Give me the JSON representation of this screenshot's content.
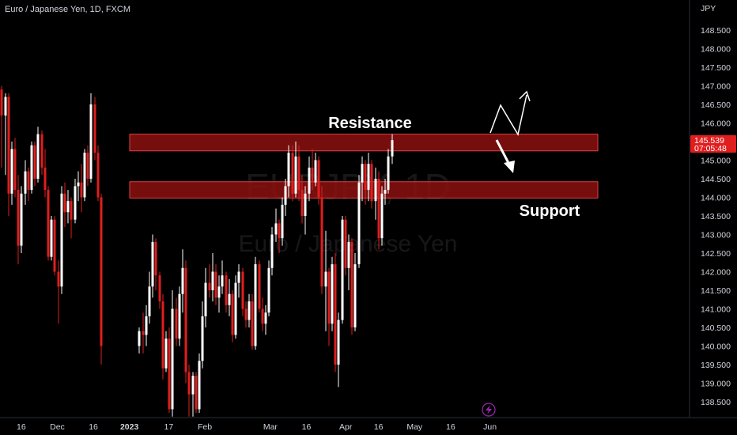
{
  "header": {
    "title": "Euro / Japanese Yen, 1D, FXCM"
  },
  "watermark": {
    "symbol": "EURJPY, 1D",
    "name": "Euro / Japanese Yen"
  },
  "price_axis": {
    "currency": "JPY"
  },
  "price_label": {
    "price": "145.539",
    "countdown": "07:05:48"
  },
  "annotations": {
    "resistance": "Resistance",
    "support": "Support"
  },
  "colors": {
    "up": "#ffffff",
    "down": "#e01e1e",
    "zone_fill": "#8b1111",
    "zone_stroke": "#e04040",
    "background": "#000000"
  },
  "icons": {
    "bottom": "lightning-icon"
  },
  "chart_data": {
    "type": "candlestick",
    "ylim": [
      138.15,
      149.2
    ],
    "y_ticks": [
      138.5,
      139.0,
      139.5,
      140.0,
      140.5,
      141.0,
      141.5,
      142.0,
      142.5,
      143.0,
      143.5,
      144.0,
      144.5,
      145.0,
      145.5,
      146.0,
      146.5,
      147.0,
      147.5,
      148.0,
      148.5
    ],
    "x_ticks": [
      {
        "label": "16",
        "bar": 6
      },
      {
        "label": "Dec",
        "bar": 17
      },
      {
        "label": "16",
        "bar": 28
      },
      {
        "label": "2023",
        "bar": 39,
        "bold": true
      },
      {
        "label": "17",
        "bar": 51
      },
      {
        "label": "Feb",
        "bar": 62
      },
      {
        "label": "Mar",
        "bar": 82
      },
      {
        "label": "16",
        "bar": 93
      },
      {
        "label": "Apr",
        "bar": 105
      },
      {
        "label": "16",
        "bar": 115
      },
      {
        "label": "May",
        "bar": 126
      },
      {
        "label": "16",
        "bar": 137
      },
      {
        "label": "Jun",
        "bar": 149
      }
    ],
    "zones": [
      {
        "name": "resistance",
        "low": 145.25,
        "high": 145.7
      },
      {
        "name": "support",
        "low": 143.98,
        "high": 144.42
      }
    ],
    "candles": [
      [
        146.9,
        147.0,
        144.8,
        146.2
      ],
      [
        146.2,
        146.8,
        144.6,
        146.7
      ],
      [
        146.7,
        146.8,
        143.5,
        144.1
      ],
      [
        144.1,
        145.5,
        143.8,
        145.3
      ],
      [
        145.3,
        145.6,
        144.0,
        144.2
      ],
      [
        144.2,
        144.6,
        142.2,
        142.7
      ],
      [
        142.7,
        144.3,
        142.5,
        144.1
      ],
      [
        144.1,
        145.0,
        143.8,
        144.7
      ],
      [
        144.7,
        144.8,
        143.9,
        144.2
      ],
      [
        144.2,
        145.5,
        144.1,
        145.4
      ],
      [
        145.4,
        145.5,
        144.3,
        144.5
      ],
      [
        144.5,
        145.9,
        144.4,
        145.7
      ],
      [
        145.7,
        145.8,
        144.6,
        144.8
      ],
      [
        144.8,
        145.3,
        144.0,
        144.2
      ],
      [
        144.2,
        144.3,
        142.3,
        142.4
      ],
      [
        142.4,
        143.5,
        142.3,
        143.4
      ],
      [
        143.4,
        143.5,
        141.9,
        142.0
      ],
      [
        142.0,
        142.3,
        140.6,
        141.6
      ],
      [
        141.6,
        144.3,
        141.4,
        144.1
      ],
      [
        144.1,
        144.4,
        143.2,
        143.6
      ],
      [
        143.6,
        144.2,
        143.3,
        143.9
      ],
      [
        143.9,
        144.0,
        142.9,
        143.4
      ],
      [
        143.4,
        144.5,
        143.3,
        144.3
      ],
      [
        144.3,
        144.7,
        143.9,
        144.4
      ],
      [
        144.4,
        144.9,
        143.6,
        144.0
      ],
      [
        144.0,
        145.3,
        143.9,
        145.2
      ],
      [
        145.2,
        145.4,
        144.3,
        144.5
      ],
      [
        144.5,
        146.8,
        144.4,
        146.5
      ],
      [
        146.5,
        146.7,
        145.0,
        145.2
      ],
      [
        145.2,
        145.4,
        143.9,
        144.0
      ],
      [
        144.0,
        144.1,
        139.5,
        140.0
      ],
      [
        140.0,
        140.5,
        139.8,
        140.4
      ],
      [
        140.4,
        140.9,
        139.8,
        140.3
      ],
      [
        140.3,
        141.1,
        140.0,
        140.8
      ],
      [
        140.8,
        142.0,
        140.6,
        141.6
      ],
      [
        141.6,
        143.0,
        141.3,
        142.8
      ],
      [
        142.8,
        142.9,
        141.5,
        141.9
      ],
      [
        141.9,
        142.0,
        141.0,
        141.2
      ],
      [
        141.2,
        141.4,
        139.1,
        139.4
      ],
      [
        139.4,
        140.4,
        139.3,
        140.2
      ],
      [
        140.2,
        140.5,
        138.2,
        138.3
      ],
      [
        138.3,
        141.5,
        138.1,
        141.0
      ],
      [
        141.0,
        141.3,
        140.0,
        140.2
      ],
      [
        140.2,
        141.6,
        140.0,
        141.4
      ],
      [
        141.4,
        142.6,
        140.9,
        142.1
      ],
      [
        142.1,
        142.3,
        139.0,
        139.3
      ],
      [
        139.3,
        139.5,
        138.1,
        138.7
      ],
      [
        138.7,
        139.3,
        138.1,
        139.2
      ],
      [
        139.2,
        139.3,
        138.2,
        138.3
      ],
      [
        138.3,
        139.8,
        138.2,
        139.6
      ],
      [
        139.6,
        141.2,
        139.4,
        140.8
      ],
      [
        140.8,
        142.1,
        140.5,
        141.7
      ],
      [
        141.7,
        142.2,
        141.3,
        141.5
      ],
      [
        141.5,
        142.5,
        141.2,
        142.0
      ],
      [
        142.0,
        142.2,
        141.1,
        141.3
      ],
      [
        141.3,
        141.9,
        140.9,
        141.6
      ],
      [
        141.6,
        142.3,
        141.4,
        141.9
      ],
      [
        141.9,
        142.0,
        140.9,
        141.1
      ],
      [
        141.1,
        141.8,
        140.8,
        141.4
      ],
      [
        141.4,
        141.5,
        140.1,
        140.3
      ],
      [
        140.3,
        141.9,
        140.2,
        141.7
      ],
      [
        141.7,
        142.2,
        141.3,
        142.0
      ],
      [
        142.0,
        142.1,
        140.8,
        141.0
      ],
      [
        141.0,
        141.2,
        140.5,
        140.7
      ],
      [
        140.7,
        141.4,
        140.5,
        141.2
      ],
      [
        141.2,
        141.4,
        139.9,
        140.0
      ],
      [
        140.0,
        142.4,
        139.9,
        142.2
      ],
      [
        142.2,
        142.3,
        140.9,
        141.0
      ],
      [
        141.0,
        141.3,
        140.4,
        140.6
      ],
      [
        140.6,
        141.1,
        140.3,
        140.9
      ],
      [
        140.9,
        142.3,
        140.8,
        142.1
      ],
      [
        142.1,
        143.2,
        141.9,
        143.0
      ],
      [
        143.0,
        143.7,
        142.8,
        143.3
      ],
      [
        143.3,
        143.4,
        142.5,
        142.9
      ],
      [
        142.9,
        144.0,
        142.7,
        143.8
      ],
      [
        143.8,
        144.5,
        143.5,
        144.3
      ],
      [
        144.3,
        145.4,
        144.0,
        145.2
      ],
      [
        145.2,
        145.4,
        143.9,
        144.1
      ],
      [
        144.1,
        145.5,
        144.0,
        145.1
      ],
      [
        145.1,
        145.4,
        143.9,
        144.2
      ],
      [
        144.2,
        144.6,
        143.3,
        143.5
      ],
      [
        143.5,
        144.3,
        143.0,
        144.1
      ],
      [
        144.1,
        145.1,
        143.9,
        144.8
      ],
      [
        144.8,
        145.3,
        144.2,
        144.4
      ],
      [
        144.4,
        145.2,
        144.3,
        145.0
      ],
      [
        145.0,
        145.1,
        143.8,
        144.0
      ],
      [
        144.0,
        144.3,
        141.4,
        141.6
      ],
      [
        141.6,
        143.1,
        140.4,
        142.0
      ],
      [
        142.0,
        142.1,
        140.0,
        140.6
      ],
      [
        140.6,
        142.4,
        140.4,
        142.2
      ],
      [
        142.2,
        142.5,
        139.3,
        139.5
      ],
      [
        139.5,
        140.9,
        138.9,
        140.7
      ],
      [
        140.7,
        143.5,
        140.6,
        143.4
      ],
      [
        143.4,
        143.5,
        141.9,
        142.1
      ],
      [
        142.1,
        143.0,
        141.5,
        142.8
      ],
      [
        142.8,
        142.9,
        140.3,
        140.5
      ],
      [
        140.5,
        142.5,
        140.4,
        142.2
      ],
      [
        142.2,
        144.6,
        142.1,
        144.4
      ],
      [
        144.4,
        145.1,
        143.9,
        144.9
      ],
      [
        144.9,
        145.0,
        143.8,
        144.2
      ],
      [
        144.2,
        145.2,
        143.9,
        144.9
      ],
      [
        144.9,
        145.0,
        143.7,
        143.9
      ],
      [
        143.9,
        144.8,
        143.4,
        144.5
      ],
      [
        144.5,
        144.7,
        142.6,
        142.9
      ],
      [
        142.9,
        144.3,
        142.7,
        144.1
      ],
      [
        144.1,
        144.5,
        143.8,
        144.2
      ],
      [
        144.2,
        145.3,
        144.1,
        145.1
      ],
      [
        145.1,
        145.7,
        144.9,
        145.539
      ]
    ],
    "candle_x": [
      2,
      7,
      11,
      15,
      19,
      23,
      27,
      32,
      36,
      40,
      44,
      48,
      53,
      57,
      61,
      65,
      69,
      74,
      78,
      82,
      86,
      90,
      95,
      99,
      103,
      107,
      111,
      115,
      120,
      124,
      128,
      176,
      181,
      185,
      189,
      193,
      197,
      202,
      206,
      210,
      214,
      218,
      223,
      227,
      231,
      235,
      239,
      244,
      248,
      252,
      256,
      260,
      265,
      269,
      273,
      277,
      281,
      286,
      290,
      294,
      298,
      302,
      307,
      311,
      315,
      319,
      323,
      328,
      332,
      336,
      340,
      344,
      349,
      353,
      357,
      361,
      365,
      370,
      374,
      378,
      382,
      386,
      391,
      395,
      399,
      403,
      407,
      412,
      416,
      420,
      424,
      428,
      433,
      437,
      441,
      445,
      449,
      454,
      458,
      462,
      466,
      470,
      475,
      479,
      483,
      487,
      491,
      496
    ]
  }
}
